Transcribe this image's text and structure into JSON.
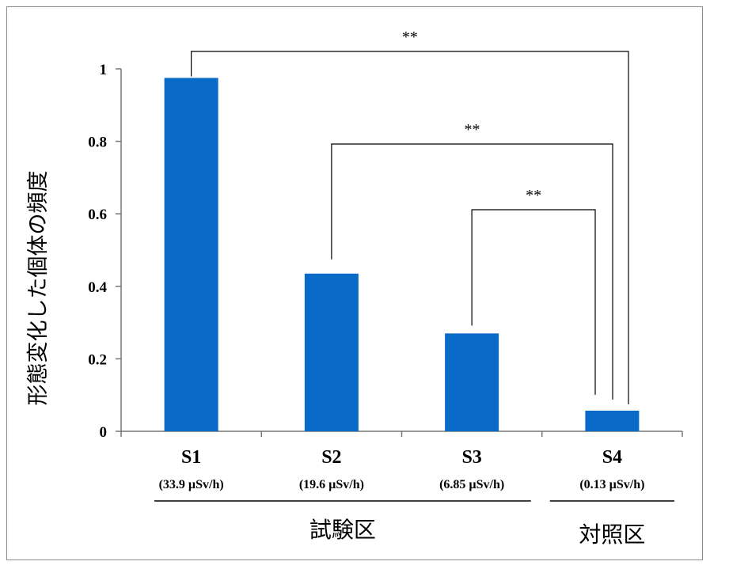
{
  "chart_data": {
    "type": "bar",
    "ylabel": "形態変化した個体の頻度",
    "ylim": [
      0,
      1
    ],
    "yticks": [
      "0",
      "0.2",
      "0.4",
      "0.6",
      "0.8",
      "1"
    ],
    "ytick_values": [
      0,
      0.2,
      0.4,
      0.6,
      0.8,
      1
    ],
    "categories": [
      "S1",
      "S2",
      "S3",
      "S4"
    ],
    "category_sublabels": [
      "(33.9 µSv/h)",
      "(19.6 µSv/h)",
      "(6.85 µSv/h)",
      "(0.13 µSv/h)"
    ],
    "values": [
      0.975,
      0.435,
      0.27,
      0.057
    ],
    "bar_color": "#0a6ac8",
    "grid": false,
    "groups": [
      {
        "label": "試験区",
        "categories": [
          "S1",
          "S2",
          "S3"
        ]
      },
      {
        "label": "対照区",
        "categories": [
          "S4"
        ]
      }
    ],
    "significance": [
      {
        "from": "S1",
        "to": "S4",
        "label": "**"
      },
      {
        "from": "S2",
        "to": "S4",
        "label": "**"
      },
      {
        "from": "S3",
        "to": "S4",
        "label": "**"
      }
    ]
  }
}
